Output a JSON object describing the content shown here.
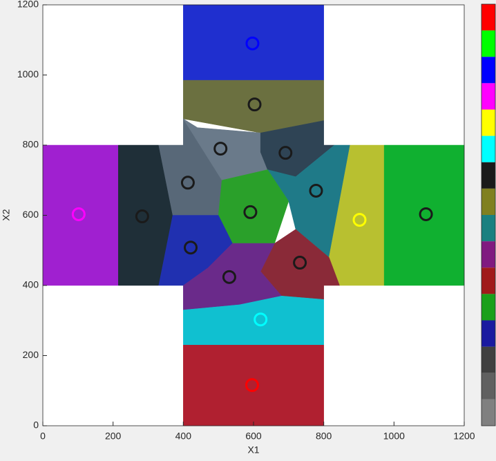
{
  "chart_data": {
    "type": "scatter",
    "xlabel": "X1",
    "ylabel": "X2",
    "xlim": [
      0,
      1200
    ],
    "ylim": [
      0,
      1200
    ],
    "xticks": [
      0,
      200,
      400,
      600,
      800,
      1000,
      1200
    ],
    "yticks": [
      0,
      200,
      400,
      600,
      800,
      1000,
      1200
    ],
    "regions": [
      {
        "color": "#1f2fcf",
        "x": [
          400,
          800,
          800,
          400
        ],
        "y": [
          1200,
          1200,
          985,
          985
        ]
      },
      {
        "color": "#6b7040",
        "x": [
          400,
          800,
          800,
          620,
          400
        ],
        "y": [
          985,
          985,
          870,
          835,
          875
        ]
      },
      {
        "color": "#a020d0",
        "x": [
          0,
          215,
          215,
          0
        ],
        "y": [
          800,
          800,
          400,
          400
        ]
      },
      {
        "color": "#1f2f38",
        "x": [
          215,
          330,
          370,
          330,
          215
        ],
        "y": [
          800,
          800,
          600,
          400,
          400
        ]
      },
      {
        "color": "#586878",
        "x": [
          330,
          400,
          400,
          440,
          510,
          500,
          370
        ],
        "y": [
          800,
          800,
          875,
          850,
          700,
          600,
          600
        ]
      },
      {
        "color": "#6a7a8a",
        "x": [
          400,
          440,
          620,
          620,
          640,
          510
        ],
        "y": [
          875,
          850,
          835,
          780,
          730,
          700
        ]
      },
      {
        "color": "#2f4455",
        "x": [
          620,
          800,
          800,
          830,
          720,
          640,
          620
        ],
        "y": [
          835,
          870,
          800,
          800,
          710,
          730,
          780
        ]
      },
      {
        "color": "#1f7a88",
        "x": [
          720,
          830,
          875,
          815,
          720,
          700,
          640
        ],
        "y": [
          710,
          800,
          800,
          480,
          560,
          640,
          730
        ]
      },
      {
        "color": "#2aa02a",
        "x": [
          510,
          640,
          700,
          660,
          540,
          500
        ],
        "y": [
          700,
          730,
          640,
          520,
          520,
          600
        ]
      },
      {
        "color": "#b8c030",
        "x": [
          875,
          972,
          972,
          845,
          815
        ],
        "y": [
          800,
          800,
          400,
          400,
          480
        ]
      },
      {
        "color": "#10b030",
        "x": [
          972,
          1200,
          1200,
          972
        ],
        "y": [
          800,
          800,
          400,
          400
        ]
      },
      {
        "color": "#2030b0",
        "x": [
          370,
          500,
          540,
          470,
          400,
          330
        ],
        "y": [
          600,
          600,
          520,
          450,
          400,
          400
        ]
      },
      {
        "color": "#8a2a38",
        "x": [
          660,
          720,
          815,
          845,
          800,
          800,
          680,
          620
        ],
        "y": [
          520,
          560,
          480,
          400,
          400,
          360,
          370,
          440
        ]
      },
      {
        "color": "#6a2a8a",
        "x": [
          400,
          470,
          540,
          660,
          620,
          680,
          560,
          400
        ],
        "y": [
          400,
          450,
          520,
          520,
          440,
          370,
          345,
          330
        ]
      },
      {
        "color": "#10c0d0",
        "x": [
          400,
          560,
          680,
          800,
          800,
          400
        ],
        "y": [
          330,
          345,
          370,
          360,
          230,
          230
        ]
      },
      {
        "color": "#b02030",
        "x": [
          400,
          800,
          800,
          400
        ],
        "y": [
          230,
          230,
          0,
          0
        ]
      }
    ],
    "x": [
      597,
      603,
      506,
      691,
      413,
      778,
      591,
      102,
      283,
      902,
      1091,
      421,
      732,
      531,
      620,
      596
    ],
    "y": [
      1090,
      916,
      790,
      778,
      693,
      670,
      609,
      603,
      597,
      587,
      603,
      508,
      465,
      424,
      303,
      116
    ],
    "point_colors": [
      "#1f2fcf",
      "#6b7040",
      "#6a7a8a",
      "#2f4455",
      "#586878",
      "#1f7a88",
      "#2aa02a",
      "#a020d0",
      "#1f2f38",
      "#b8c030",
      "#10b030",
      "#2030b0",
      "#8a2a38",
      "#6a2a8a",
      "#10c0d0",
      "#b02030"
    ],
    "edge_colors": [
      "#0000ff",
      "#1a1a1a",
      "#1a1a1a",
      "#1a1a1a",
      "#1a1a1a",
      "#1a1a1a",
      "#1a1a1a",
      "#ff00ff",
      "#1a1a1a",
      "#ffff00",
      "#1a1a1a",
      "#1a1a1a",
      "#1a1a1a",
      "#1a1a1a",
      "#00ffff",
      "#ff0000"
    ],
    "colorbar": [
      "#ff0000",
      "#00ff00",
      "#0000ff",
      "#ff00ff",
      "#ffff00",
      "#00ffff",
      "#1a1a1a",
      "#808020",
      "#1a8080",
      "#801a80",
      "#a01a1a",
      "#1aa01a",
      "#1a1aa0",
      "#404040",
      "#606060",
      "#808080"
    ]
  }
}
